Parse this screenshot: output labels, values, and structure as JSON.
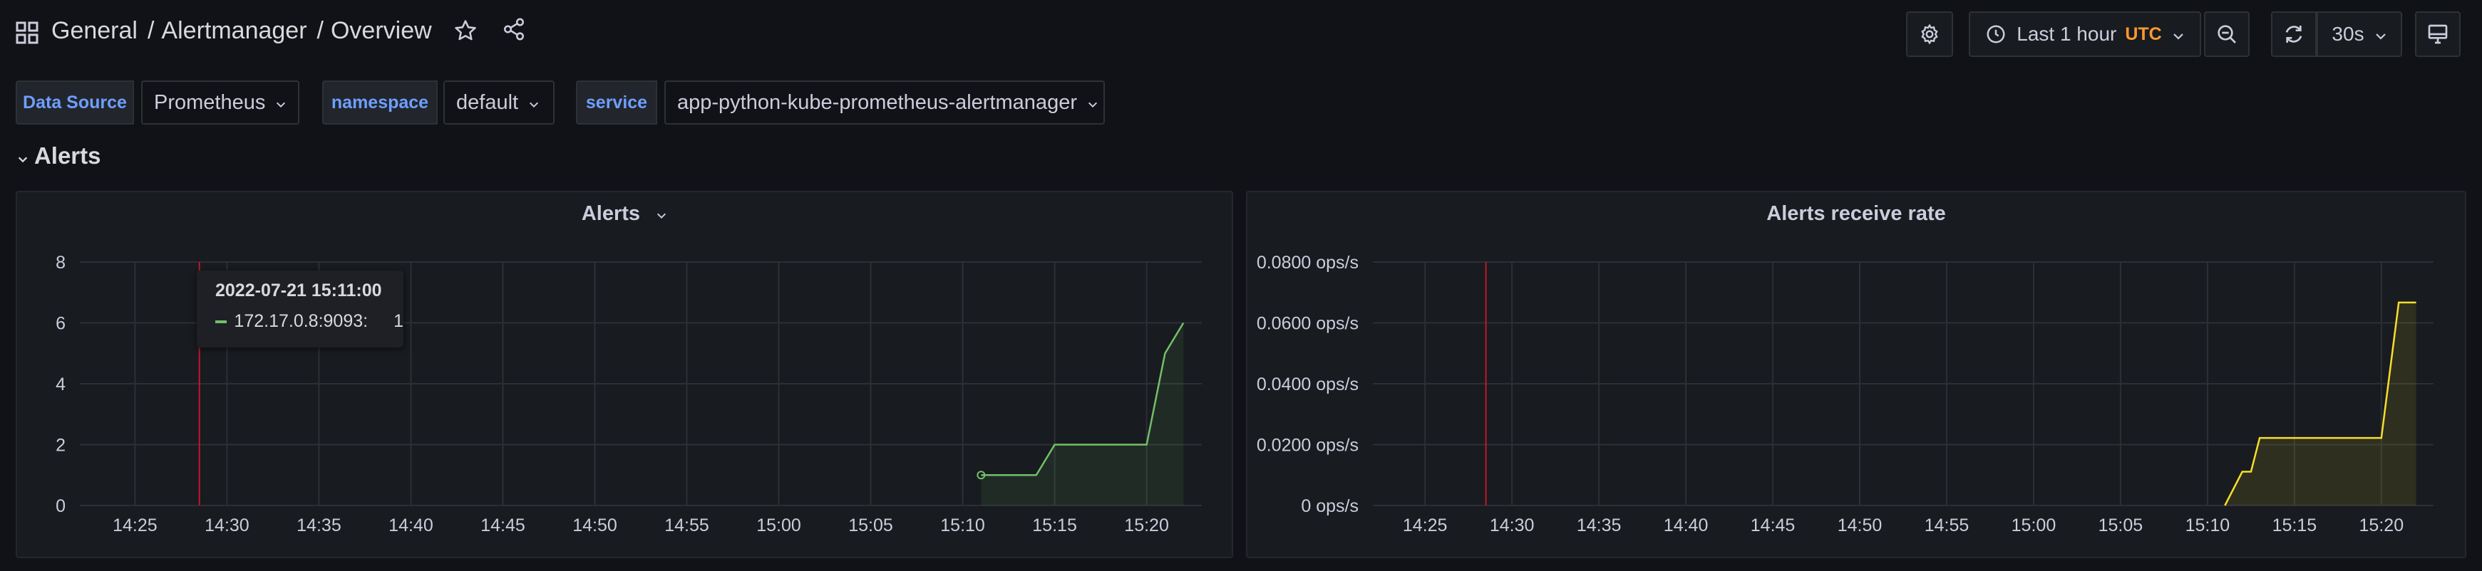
{
  "header": {
    "crumb_root": "General",
    "crumb_folder": "Alertmanager",
    "crumb_dash": "Overview",
    "sep": "/",
    "time_range": "Last 1 hour",
    "timezone": "UTC",
    "refresh": "30s"
  },
  "variables": [
    {
      "label": "Data Source",
      "value": "Prometheus"
    },
    {
      "label": "namespace",
      "value": "default"
    },
    {
      "label": "service",
      "value": "app-python-kube-prometheus-alertmanager"
    }
  ],
  "row": {
    "title": "Alerts"
  },
  "colors": {
    "series_green": "#73bf69",
    "series_yellow": "#fade2a",
    "annotation_red": "#c4162a"
  },
  "tooltip": {
    "time": "2022-07-21 15:11:00",
    "series": "172.17.0.8:9093:",
    "value": "1"
  },
  "chart_data": [
    {
      "type": "line",
      "title": "Alerts",
      "x_ticks": [
        "14:25",
        "14:30",
        "14:35",
        "14:40",
        "14:45",
        "14:50",
        "14:55",
        "15:00",
        "15:05",
        "15:10",
        "15:15",
        "15:20"
      ],
      "y_ticks": [
        "0",
        "2",
        "4",
        "6",
        "8"
      ],
      "ylim": [
        0,
        8
      ],
      "xlim": [
        "14:22",
        "15:23"
      ],
      "annotation_x": "14:28.5",
      "grid": true,
      "series": [
        {
          "x": [
            "15:11",
            "15:14",
            "15:15",
            "15:20",
            "15:21",
            "15:22"
          ],
          "values": [
            1,
            1,
            2,
            2,
            5,
            6
          ]
        }
      ]
    },
    {
      "type": "line",
      "title": "Alerts receive rate",
      "x_ticks": [
        "14:25",
        "14:30",
        "14:35",
        "14:40",
        "14:45",
        "14:50",
        "14:55",
        "15:00",
        "15:05",
        "15:10",
        "15:15",
        "15:20"
      ],
      "y_ticks": [
        "0 ops/s",
        "0.0200 ops/s",
        "0.0400 ops/s",
        "0.0600 ops/s",
        "0.0800 ops/s"
      ],
      "ylim": [
        0,
        0.08
      ],
      "xlim": [
        "14:22",
        "15:23"
      ],
      "annotation_x": "14:28.5",
      "grid": true,
      "series": [
        {
          "x": [
            "15:11",
            "15:12",
            "15:12.5",
            "15:13",
            "15:15",
            "15:20",
            "15:21",
            "15:22"
          ],
          "values": [
            0,
            0.0111,
            0.0111,
            0.0222,
            0.0222,
            0.0222,
            0.0667,
            0.0667
          ]
        }
      ]
    }
  ]
}
